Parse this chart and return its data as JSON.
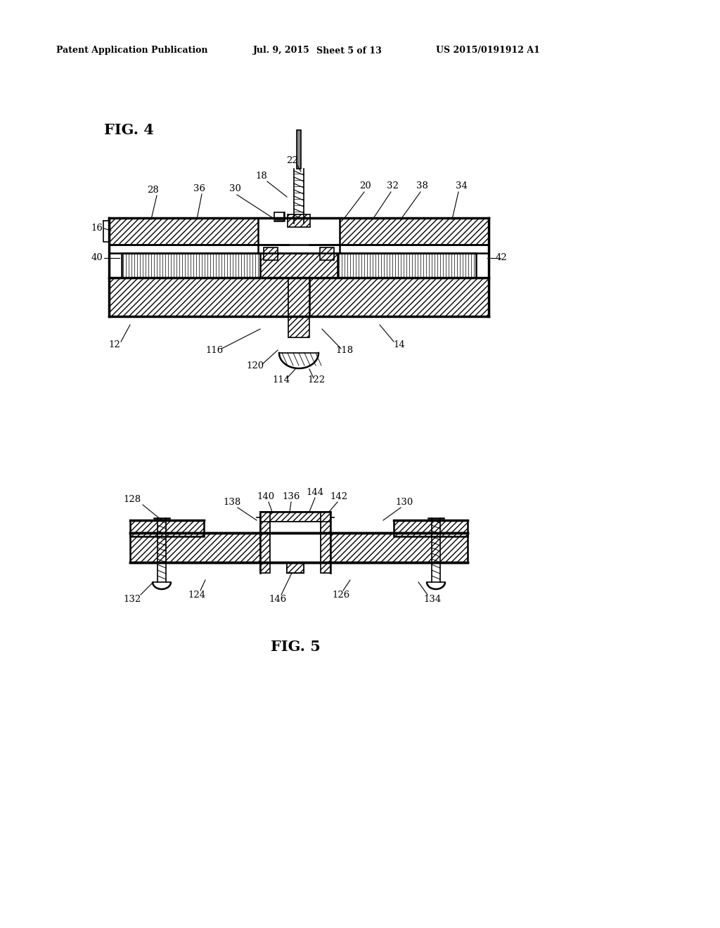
{
  "bg_color": "#ffffff",
  "line_color": "#000000",
  "fig_width": 10.24,
  "fig_height": 13.2,
  "header_text": "Patent Application Publication",
  "header_date": "Jul. 9, 2015",
  "header_sheet": "Sheet 5 of 13",
  "header_patent": "US 2015/0191912 A1",
  "fig4_label": "FIG. 4",
  "fig5_label": "FIG. 5"
}
